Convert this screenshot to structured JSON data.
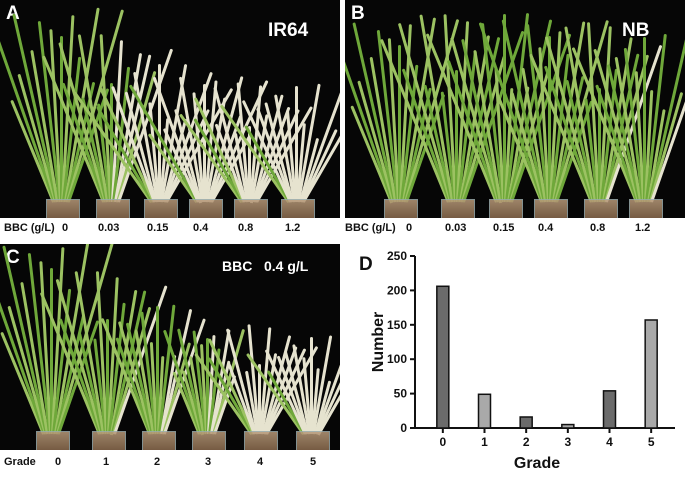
{
  "panel_a": {
    "letter": "A",
    "title": "IR64",
    "row_label": "BBC (g/L)",
    "labels": [
      "0",
      "0.03",
      "0.15",
      "0.4",
      "0.8",
      "1.2"
    ]
  },
  "panel_b": {
    "letter": "B",
    "title": "NB",
    "row_label": "BBC (g/L)",
    "labels": [
      "0",
      "0.03",
      "0.15",
      "0.4",
      "0.8",
      "1.2"
    ]
  },
  "panel_c": {
    "letter": "C",
    "title": "BBC   0.4 g/L",
    "row_label": "Grade",
    "labels": [
      "0",
      "1",
      "2",
      "3",
      "4",
      "5"
    ]
  },
  "panel_d": {
    "letter": "D"
  },
  "colors": {
    "healthy": "#6fa83a",
    "light_green": "#9cc262",
    "bleached": "#e6e3cf",
    "bar_dark": "#6b6b6b",
    "bar_light": "#a9a9a9"
  },
  "chart_data": {
    "type": "bar",
    "categories": [
      "0",
      "1",
      "2",
      "3",
      "4",
      "5"
    ],
    "values": [
      206,
      49,
      16,
      5,
      54,
      157
    ],
    "xlabel": "Grade",
    "ylabel": "Number",
    "ylim": [
      0,
      250
    ],
    "yticks": [
      "0",
      "50",
      "100",
      "150",
      "200",
      "250"
    ]
  }
}
